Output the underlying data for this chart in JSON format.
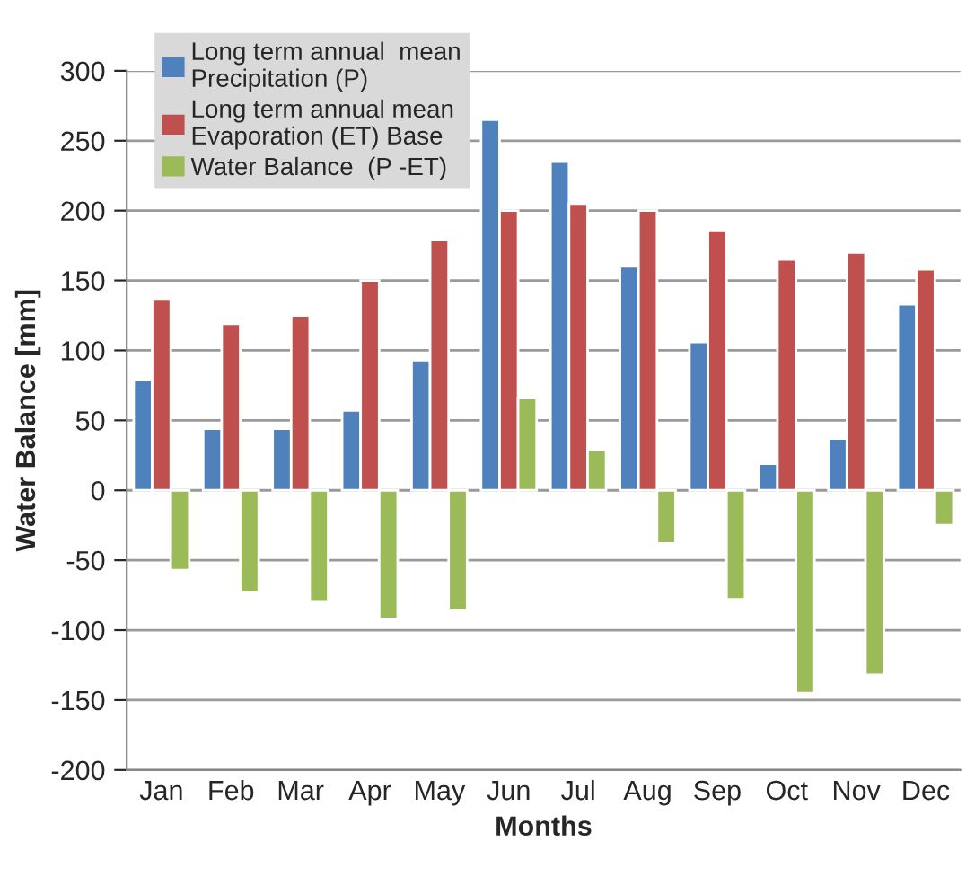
{
  "chart_data": {
    "type": "bar",
    "xlabel": "Months",
    "ylabel": "Water Balance [mm]",
    "categories": [
      "Jan",
      "Feb",
      "Mar",
      "Apr",
      "May",
      "Jun",
      "Jul",
      "Aug",
      "Sep",
      "Oct",
      "Nov",
      "Dec"
    ],
    "series": [
      {
        "name": "Long term annual  mean\nPrecipitation (P)",
        "color": "#4f81bd",
        "values": [
          79,
          44,
          44,
          57,
          93,
          265,
          235,
          160,
          106,
          19,
          37,
          133
        ]
      },
      {
        "name": "Long term annual mean\nEvaporation (ET) Base",
        "color": "#c0504d",
        "values": [
          137,
          119,
          125,
          150,
          179,
          200,
          205,
          200,
          186,
          165,
          170,
          158
        ]
      },
      {
        "name": "Water Balance  (P -ET)",
        "color": "#9bbb59",
        "values": [
          -57,
          -73,
          -80,
          -92,
          -86,
          66,
          29,
          -38,
          -78,
          -145,
          -132,
          -25
        ]
      }
    ],
    "ylim": [
      -200,
      300
    ],
    "yticks": [
      -200,
      -150,
      -100,
      -50,
      0,
      50,
      100,
      150,
      200,
      250,
      300
    ],
    "grid": "y",
    "legend": "top left"
  }
}
